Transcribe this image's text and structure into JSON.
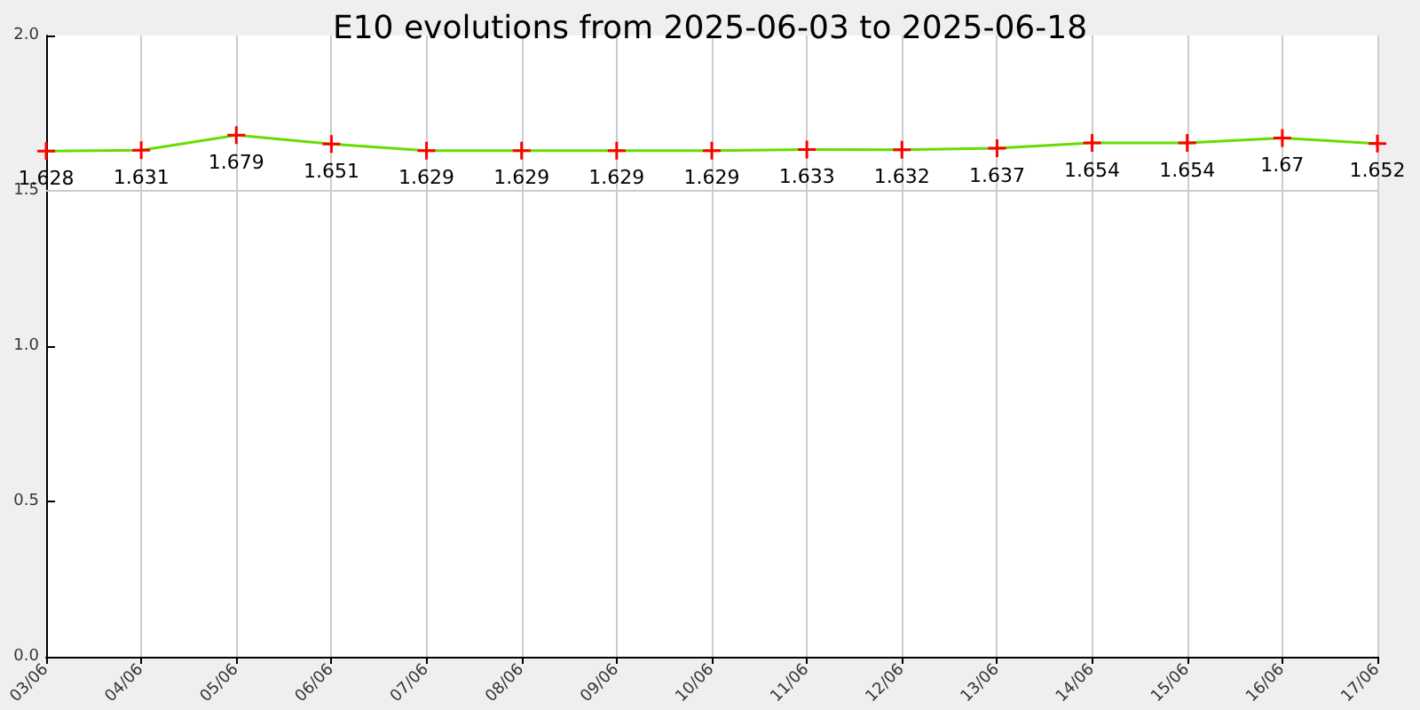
{
  "chart_data": {
    "type": "line",
    "title": "E10 evolutions from 2025-06-03 to 2025-06-18",
    "categories": [
      "03/06",
      "04/06",
      "05/06",
      "06/06",
      "07/06",
      "08/06",
      "09/06",
      "10/06",
      "11/06",
      "12/06",
      "13/06",
      "14/06",
      "15/06",
      "16/06",
      "17/06"
    ],
    "series": [
      {
        "color": "#66dd00",
        "colors": [
          "#ff0000",
          "#ff0000",
          "#ff0000",
          "#ff0000",
          "#ff0000",
          "#ff0000",
          "#ff0000",
          "#ff0000",
          "#ff0000",
          "#ff0000",
          "#ff0000",
          "#ff0000",
          "#ff0000",
          "#ff0000",
          "#ff0000"
        ],
        "values": [
          1.628,
          1.631,
          1.679,
          1.651,
          1.629,
          1.629,
          1.629,
          1.629,
          1.633,
          1.632,
          1.637,
          1.654,
          1.654,
          1.67,
          1.652
        ]
      }
    ],
    "ylim": [
      0,
      2
    ],
    "yticks": [
      {
        "value": 0,
        "label": "0.0"
      },
      {
        "value": 0.5,
        "label": "0.5"
      },
      {
        "value": 1,
        "label": "1.0"
      },
      {
        "value": 1.5,
        "label": "1.5"
      },
      {
        "value": 2,
        "label": "2.0"
      }
    ],
    "ref_lines": [
      {
        "axis": "y",
        "value": 1.5,
        "label": null,
        "color": "#cccccc"
      }
    ],
    "grid": "x",
    "marker": "cross",
    "data_labels": true
  }
}
